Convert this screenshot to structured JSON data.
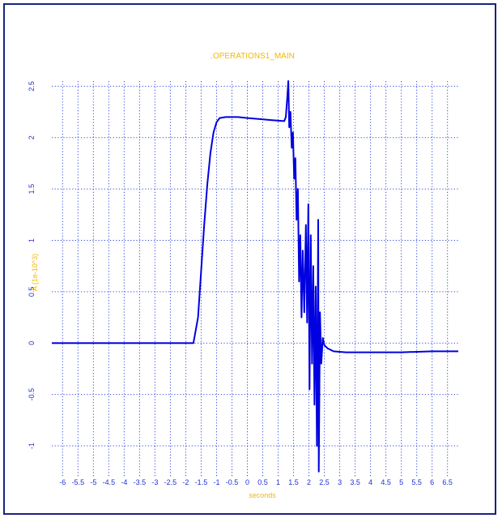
{
  "chart_data": {
    "type": "line",
    "title": ".OPERATIONS1_MAIN",
    "xlabel": "seconds",
    "ylabel": "A (1e-10^3)",
    "xlim": [
      -6.35,
      6.85
    ],
    "ylim": [
      -1.3,
      2.55
    ],
    "grid": true,
    "x_ticks": [
      "-6",
      "-5.5",
      "-5",
      "-4.5",
      "-4",
      "-3.5",
      "-3",
      "-2.5",
      "-2",
      "-1.5",
      "-1",
      "-0.5",
      "0",
      "0.5",
      "1",
      "1.5",
      "2",
      "2.5",
      "3",
      "3.5",
      "4",
      "4.5",
      "5",
      "5.5",
      "6",
      "6.5"
    ],
    "y_ticks": [
      "-1",
      "-0.5",
      "0",
      "0.5",
      "1",
      "1.5",
      "2",
      "2.5"
    ],
    "series": [
      {
        "color": "#0000e0",
        "points": [
          [
            -6.35,
            0.0
          ],
          [
            -1.75,
            0.0
          ],
          [
            -1.6,
            0.25
          ],
          [
            -1.5,
            0.7
          ],
          [
            -1.4,
            1.15
          ],
          [
            -1.3,
            1.55
          ],
          [
            -1.2,
            1.85
          ],
          [
            -1.1,
            2.05
          ],
          [
            -1.0,
            2.15
          ],
          [
            -0.9,
            2.19
          ],
          [
            -0.7,
            2.2
          ],
          [
            -0.3,
            2.2
          ],
          [
            0.0,
            2.19
          ],
          [
            0.4,
            2.18
          ],
          [
            0.8,
            2.17
          ],
          [
            1.2,
            2.16
          ],
          [
            1.25,
            2.2
          ],
          [
            1.3,
            2.4
          ],
          [
            1.33,
            2.55
          ],
          [
            1.36,
            2.1
          ],
          [
            1.4,
            2.25
          ],
          [
            1.44,
            1.9
          ],
          [
            1.48,
            2.05
          ],
          [
            1.52,
            1.6
          ],
          [
            1.56,
            1.8
          ],
          [
            1.6,
            1.2
          ],
          [
            1.64,
            1.5
          ],
          [
            1.68,
            0.6
          ],
          [
            1.72,
            1.05
          ],
          [
            1.76,
            0.25
          ],
          [
            1.8,
            0.9
          ],
          [
            1.85,
            0.3
          ],
          [
            1.9,
            1.15
          ],
          [
            1.94,
            0.2
          ],
          [
            1.98,
            1.35
          ],
          [
            2.02,
            -0.45
          ],
          [
            2.06,
            1.05
          ],
          [
            2.1,
            -0.2
          ],
          [
            2.14,
            0.75
          ],
          [
            2.18,
            -0.6
          ],
          [
            2.22,
            0.55
          ],
          [
            2.26,
            -1.0
          ],
          [
            2.3,
            1.2
          ],
          [
            2.32,
            -1.25
          ],
          [
            2.36,
            0.3
          ],
          [
            2.4,
            -0.2
          ],
          [
            2.45,
            0.05
          ],
          [
            2.5,
            -0.02
          ],
          [
            2.6,
            -0.05
          ],
          [
            2.8,
            -0.08
          ],
          [
            3.2,
            -0.09
          ],
          [
            4.0,
            -0.09
          ],
          [
            5.0,
            -0.09
          ],
          [
            6.0,
            -0.08
          ],
          [
            6.85,
            -0.08
          ]
        ]
      }
    ]
  }
}
